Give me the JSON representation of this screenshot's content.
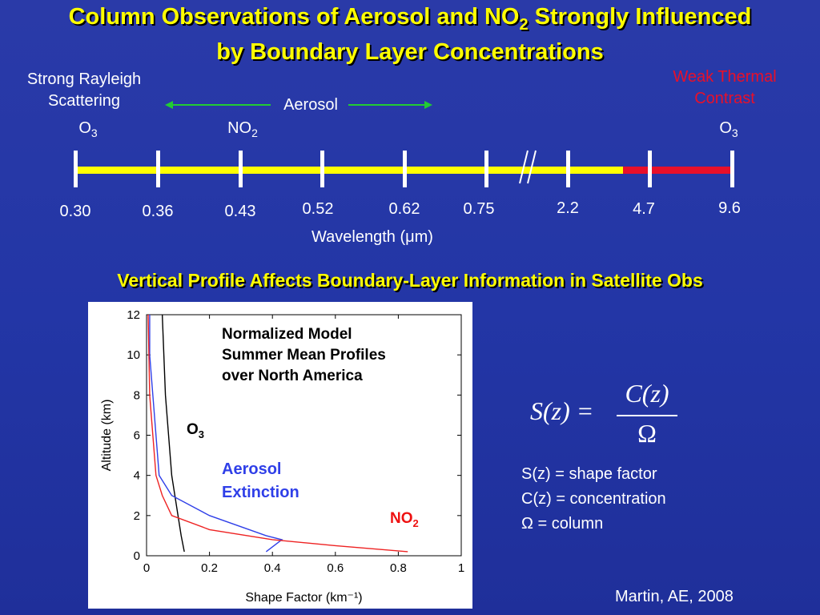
{
  "title": {
    "line1_pre": "Column Observations of Aerosol and NO",
    "line1_sub": "2",
    "line1_post": " Strongly Influenced",
    "line2": "by Boundary Layer Concentrations"
  },
  "spectrum": {
    "rayleigh_line1": "Strong Rayleigh",
    "rayleigh_line2": "Scattering",
    "thermal_line1": "Weak Thermal",
    "thermal_line2": "Contrast",
    "aerosol": "Aerosol",
    "o3_left": "O",
    "o3_left_sub": "3",
    "no2": "NO",
    "no2_sub": "2",
    "o3_right": "O",
    "o3_right_sub": "3",
    "ticks": [
      "0.30",
      "0.36",
      "0.43",
      "0.52",
      "0.62",
      "0.75",
      "2.2",
      "4.7",
      "9.6"
    ],
    "axis_label": "Wavelength (μm)",
    "bar_color_yellow": "#ffff00",
    "bar_color_red": "#e8102a",
    "aerosol_arrow_color": "#22cc33"
  },
  "subtitle": "Vertical Profile Affects Boundary-Layer Information in Satellite Obs",
  "plot": {
    "note_line1": "Normalized Model",
    "note_line2": "Summer Mean Profiles",
    "note_line3": "over North America",
    "o3_label": "O",
    "o3_sub": "3",
    "aerosol_line1": "Aerosol",
    "aerosol_line2": "Extinction",
    "no2_label": "NO",
    "no2_sub": "2"
  },
  "chart_data": {
    "type": "line",
    "xlabel": "Shape Factor (km⁻¹)",
    "ylabel": "Altitude (km)",
    "xlim": [
      0,
      1
    ],
    "ylim": [
      0,
      12
    ],
    "xticks": [
      "0",
      "0.2",
      "0.4",
      "0.6",
      "0.8",
      "1"
    ],
    "yticks": [
      "0",
      "2",
      "4",
      "6",
      "8",
      "10",
      "12"
    ],
    "series": [
      {
        "name": "O3",
        "color": "#000000",
        "x": [
          0.12,
          0.11,
          0.1,
          0.08,
          0.07,
          0.06,
          0.05
        ],
        "y": [
          0.2,
          1,
          2,
          4,
          6,
          8,
          12
        ]
      },
      {
        "name": "Aerosol Extinction",
        "color": "#2f3fe8",
        "x": [
          0.38,
          0.43,
          0.38,
          0.2,
          0.08,
          0.04,
          0.03,
          0.01,
          0.01
        ],
        "y": [
          0.2,
          0.8,
          1,
          2,
          3,
          4,
          6,
          10,
          12
        ]
      },
      {
        "name": "NO2",
        "color": "#ee2222",
        "x": [
          0.83,
          0.6,
          0.4,
          0.2,
          0.08,
          0.05,
          0.03,
          0.01,
          0.005
        ],
        "y": [
          0.2,
          0.5,
          0.8,
          1.3,
          2,
          3,
          4,
          8,
          12
        ]
      }
    ]
  },
  "formula": {
    "lhs": "S(z)",
    "num": "C(z)",
    "den": "Ω",
    "def1": "S(z) = shape factor",
    "def2": "C(z) = concentration",
    "def3": "Ω = column"
  },
  "citation": "Martin, AE, 2008"
}
